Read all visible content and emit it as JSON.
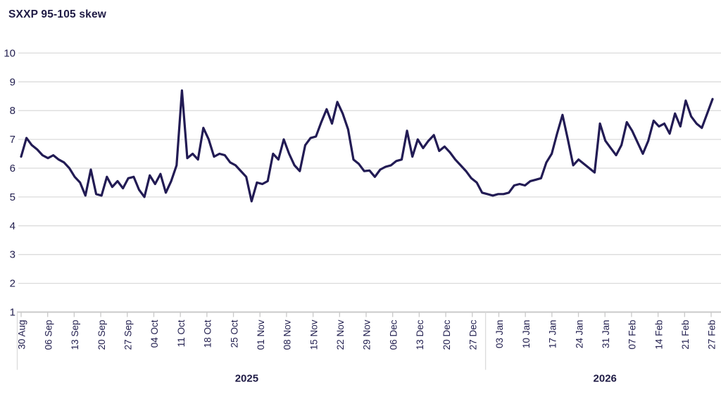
{
  "chart": {
    "title": "SXXP 95-105 skew"
  },
  "chart_data": {
    "type": "line",
    "title": "SXXP 95-105 skew",
    "xlabel": "",
    "ylabel": "",
    "ylim": [
      1,
      10
    ],
    "y_ticks": [
      1,
      2,
      3,
      4,
      5,
      6,
      7,
      8,
      9,
      10
    ],
    "grid": "horizontal",
    "legend_position": "none",
    "x_tick_labels": [
      "30 Aug",
      "06 Sep",
      "13 Sep",
      "20 Sep",
      "27 Sep",
      "04 Oct",
      "11 Oct",
      "18 Oct",
      "25 Oct",
      "01 Nov",
      "08 Nov",
      "15 Nov",
      "22 Nov",
      "29 Nov",
      "06 Dec",
      "13 Dec",
      "20 Dec",
      "27 Dec",
      "03 Jan",
      "10 Jan",
      "17 Jan",
      "24 Jan",
      "31 Jan",
      "07 Feb",
      "14 Feb",
      "21 Feb",
      "27 Feb"
    ],
    "year_labels": [
      "2025",
      "2026"
    ],
    "year_separator_after_tick": "27 Dec",
    "series": [
      {
        "name": "SXXP 95-105 skew",
        "values": [
          6.4,
          7.05,
          6.8,
          6.65,
          6.45,
          6.35,
          6.45,
          6.3,
          6.2,
          6.0,
          5.7,
          5.5,
          5.05,
          5.95,
          5.1,
          5.05,
          5.7,
          5.35,
          5.55,
          5.3,
          5.65,
          5.7,
          5.25,
          5.0,
          5.75,
          5.45,
          5.8,
          5.15,
          5.55,
          6.1,
          8.7,
          6.35,
          6.5,
          6.3,
          7.4,
          7.0,
          6.4,
          6.5,
          6.45,
          6.2,
          6.1,
          5.9,
          5.7,
          4.85,
          5.5,
          5.45,
          5.55,
          6.5,
          6.3,
          7.0,
          6.5,
          6.1,
          5.9,
          6.8,
          7.05,
          7.1,
          7.6,
          8.05,
          7.55,
          8.3,
          7.9,
          7.35,
          6.3,
          6.15,
          5.9,
          5.92,
          5.7,
          5.95,
          6.05,
          6.1,
          6.25,
          6.3,
          7.3,
          6.4,
          7.0,
          6.7,
          6.95,
          7.15,
          6.6,
          6.75,
          6.55,
          6.3,
          6.1,
          5.9,
          5.65,
          5.5,
          5.15,
          5.1,
          5.05,
          5.1,
          5.1,
          5.15,
          5.4,
          5.45,
          5.4,
          5.55,
          5.6,
          5.65,
          6.2,
          6.5,
          7.2,
          7.85,
          7.0,
          6.1,
          6.3,
          6.15,
          6.0,
          5.85,
          7.55,
          6.95,
          6.7,
          6.45,
          6.8,
          7.6,
          7.3,
          6.9,
          6.5,
          6.95,
          7.65,
          7.45,
          7.55,
          7.2,
          7.9,
          7.45,
          8.35,
          7.8,
          7.55,
          7.4,
          7.9,
          8.4
        ]
      }
    ],
    "colors": {
      "line": "#221b54",
      "text": "#232050",
      "grid": "#dbdbdb",
      "axis": "#c9c9c9",
      "background": "#ffffff"
    }
  }
}
